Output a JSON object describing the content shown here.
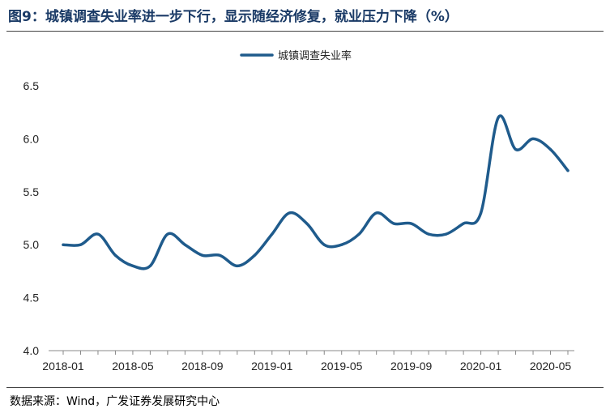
{
  "figure": {
    "title": "图9：城镇调查失业率进一步下行，显示随经济修复，就业压力下降（%）",
    "source": "数据来源：Wind，广发证券发展研究中心"
  },
  "colors": {
    "line": "#1f5b8c",
    "axis": "#888888",
    "title": "#1a3a66"
  },
  "chart_data": {
    "type": "line",
    "legend_position": "top-center",
    "grid": false,
    "x": [
      "2018-01",
      "2018-02",
      "2018-03",
      "2018-04",
      "2018-05",
      "2018-06",
      "2018-07",
      "2018-08",
      "2018-09",
      "2018-10",
      "2018-11",
      "2018-12",
      "2019-01",
      "2019-02",
      "2019-03",
      "2019-04",
      "2019-05",
      "2019-06",
      "2019-07",
      "2019-08",
      "2019-09",
      "2019-10",
      "2019-11",
      "2019-12",
      "2020-01",
      "2020-02",
      "2020-03",
      "2020-04",
      "2020-05",
      "2020-06"
    ],
    "x_tick_labels": [
      "2018-01",
      "2018-05",
      "2018-09",
      "2019-01",
      "2019-05",
      "2019-09",
      "2020-01",
      "2020-05"
    ],
    "ylim": [
      4.0,
      6.5
    ],
    "y_ticks": [
      "4.0",
      "4.5",
      "5.0",
      "5.5",
      "6.0",
      "6.5"
    ],
    "series": [
      {
        "name": "城镇调查失业率",
        "values": [
          5.0,
          5.0,
          5.1,
          4.9,
          4.8,
          4.8,
          5.1,
          5.0,
          4.9,
          4.9,
          4.8,
          4.9,
          5.1,
          5.3,
          5.2,
          5.0,
          5.0,
          5.1,
          5.3,
          5.2,
          5.2,
          5.1,
          5.1,
          5.2,
          5.3,
          6.2,
          5.9,
          6.0,
          5.9,
          5.7
        ]
      }
    ]
  }
}
